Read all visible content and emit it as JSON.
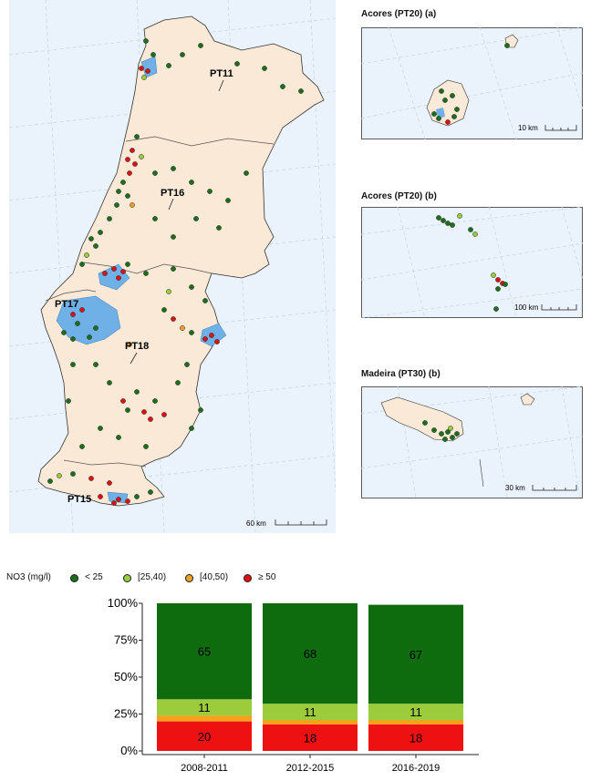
{
  "main_map": {
    "region_labels": [
      "PT11",
      "PT16",
      "PT17",
      "PT18",
      "PT15"
    ],
    "scale_label": "60 km"
  },
  "insets": [
    {
      "title": "Acores (PT20) (a)",
      "scale_label": "10 km"
    },
    {
      "title": "Acores (PT20) (b)",
      "scale_label": "100 km"
    },
    {
      "title": "Madeira (PT30) (b)",
      "scale_label": "30 km"
    }
  ],
  "legend": {
    "title": "NO3 (mg/l)",
    "items": [
      {
        "label": "< 25",
        "color": "#1b6e1b"
      },
      {
        "label": "[25,40)",
        "color": "#9acd3c"
      },
      {
        "label": "[40,50)",
        "color": "#f0a020"
      },
      {
        "label": "≥ 50",
        "color": "#e01010"
      }
    ]
  },
  "colors": {
    "land": "#fbe9d7",
    "sea": "#eaf3fb",
    "water_body": "#6fb0e6"
  },
  "chart_data": {
    "type": "bar",
    "stacked": true,
    "categories": [
      "2008-2011",
      "2012-2015",
      "2016-2019"
    ],
    "ylim": [
      0,
      100
    ],
    "yticks": [
      "0%",
      "25%",
      "50%",
      "75%",
      "100%"
    ],
    "series": [
      {
        "name": "≥ 50",
        "values": [
          20,
          18,
          18
        ],
        "color": "#ee1111",
        "labels": [
          "20",
          "18",
          "18"
        ]
      },
      {
        "name": "[40,50)",
        "values": [
          4,
          3,
          3
        ],
        "color": "#f4a21c",
        "labels": [
          "",
          "",
          ""
        ]
      },
      {
        "name": "[25,40)",
        "values": [
          11,
          11,
          11
        ],
        "color": "#9ccc3c",
        "labels": [
          "11",
          "11",
          "11"
        ]
      },
      {
        "name": "< 25",
        "values": [
          65,
          68,
          67
        ],
        "color": "#0e6b0e",
        "labels": [
          "65",
          "68",
          "67"
        ]
      }
    ]
  }
}
